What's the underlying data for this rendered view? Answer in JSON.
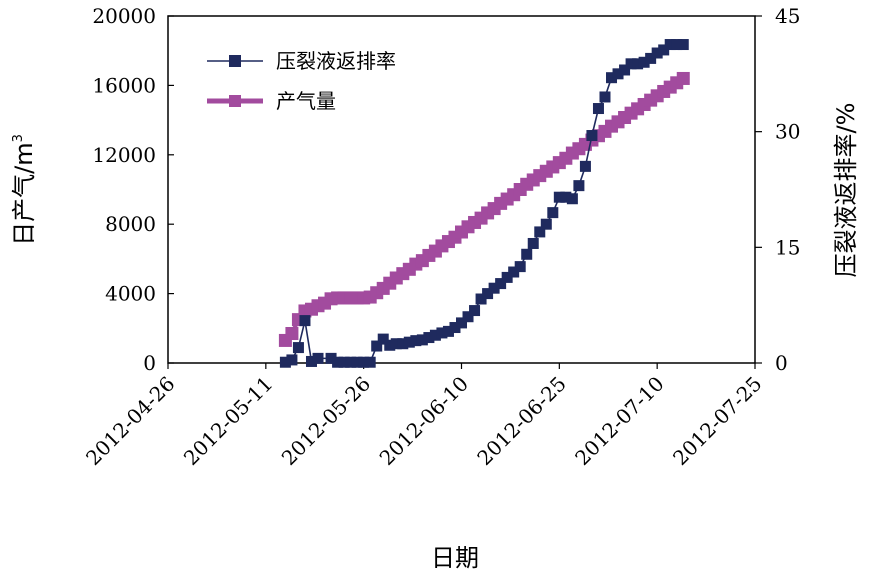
{
  "chart_data": {
    "type": "line",
    "xlabel": "日期",
    "ylabel_left": "日产气",
    "ylabel_left_unit": "m",
    "ylabel_left_sup": "3",
    "ylabel_right": "压裂液返排率/%",
    "x_ticks": [
      "2012-04-26",
      "2012-05-11",
      "2012-05-26",
      "2012-06-10",
      "2012-06-25",
      "2012-07-10",
      "2012-07-25"
    ],
    "xlim": [
      "2012-04-26",
      "2012-07-25"
    ],
    "y_left_ticks": [
      "0",
      "4000",
      "8000",
      "12000",
      "16000",
      "20000"
    ],
    "y_left_lim": [
      0,
      20000
    ],
    "y_right_ticks": [
      "0",
      "15",
      "30",
      "45"
    ],
    "y_right_lim": [
      0,
      45
    ],
    "grid": false,
    "legend_position": "top-left",
    "series": [
      {
        "name": "压裂液返排率",
        "axis": "right",
        "color": "#1f2a5e",
        "marker": "square",
        "points": [
          [
            "2012-05-14",
            0.1
          ],
          [
            "2012-05-15",
            0.4
          ],
          [
            "2012-05-16",
            2.0
          ],
          [
            "2012-05-17",
            5.5
          ],
          [
            "2012-05-18",
            0.2
          ],
          [
            "2012-05-19",
            0.6
          ],
          [
            "2012-05-21",
            0.6
          ],
          [
            "2012-05-22",
            0.1
          ],
          [
            "2012-05-23",
            0.1
          ],
          [
            "2012-05-24",
            0.1
          ],
          [
            "2012-05-25",
            0.1
          ],
          [
            "2012-05-26",
            0.1
          ],
          [
            "2012-05-27",
            0.1
          ],
          [
            "2012-05-28",
            2.2
          ],
          [
            "2012-05-29",
            3.1
          ],
          [
            "2012-05-30",
            2.3
          ],
          [
            "2012-05-31",
            2.5
          ],
          [
            "2012-06-01",
            2.5
          ],
          [
            "2012-06-02",
            2.7
          ],
          [
            "2012-06-03",
            2.9
          ],
          [
            "2012-06-04",
            3.0
          ],
          [
            "2012-06-05",
            3.3
          ],
          [
            "2012-06-06",
            3.6
          ],
          [
            "2012-06-07",
            3.9
          ],
          [
            "2012-06-08",
            4.1
          ],
          [
            "2012-06-09",
            4.6
          ],
          [
            "2012-06-10",
            5.2
          ],
          [
            "2012-06-11",
            6.0
          ],
          [
            "2012-06-12",
            6.8
          ],
          [
            "2012-06-13",
            8.3
          ],
          [
            "2012-06-14",
            9.0
          ],
          [
            "2012-06-15",
            9.7
          ],
          [
            "2012-06-16",
            10.3
          ],
          [
            "2012-06-17",
            11.1
          ],
          [
            "2012-06-18",
            11.8
          ],
          [
            "2012-06-19",
            12.5
          ],
          [
            "2012-06-20",
            14.1
          ],
          [
            "2012-06-21",
            15.5
          ],
          [
            "2012-06-22",
            17.0
          ],
          [
            "2012-06-23",
            18.0
          ],
          [
            "2012-06-24",
            19.5
          ],
          [
            "2012-06-25",
            21.5
          ],
          [
            "2012-06-26",
            21.5
          ],
          [
            "2012-06-27",
            21.3
          ],
          [
            "2012-06-28",
            23.0
          ],
          [
            "2012-06-29",
            25.5
          ],
          [
            "2012-06-30",
            29.5
          ],
          [
            "2012-07-01",
            33.0
          ],
          [
            "2012-07-02",
            34.5
          ],
          [
            "2012-07-03",
            37.0
          ],
          [
            "2012-07-04",
            37.5
          ],
          [
            "2012-07-05",
            38.0
          ],
          [
            "2012-07-06",
            38.8
          ],
          [
            "2012-07-07",
            38.8
          ],
          [
            "2012-07-08",
            39.0
          ],
          [
            "2012-07-09",
            39.5
          ],
          [
            "2012-07-10",
            40.2
          ],
          [
            "2012-07-11",
            40.6
          ],
          [
            "2012-07-12",
            41.3
          ],
          [
            "2012-07-13",
            41.3
          ],
          [
            "2012-07-14",
            41.3
          ]
        ]
      },
      {
        "name": "产气量",
        "axis": "left",
        "color": "#a24b9e",
        "marker": "square",
        "points": [
          [
            "2012-05-14",
            1300
          ],
          [
            "2012-05-15",
            1700
          ],
          [
            "2012-05-16",
            2500
          ],
          [
            "2012-05-17",
            3000
          ],
          [
            "2012-05-18",
            3100
          ],
          [
            "2012-05-19",
            3300
          ],
          [
            "2012-05-20",
            3450
          ],
          [
            "2012-05-21",
            3700
          ],
          [
            "2012-05-22",
            3750
          ],
          [
            "2012-05-23",
            3750
          ],
          [
            "2012-05-24",
            3750
          ],
          [
            "2012-05-25",
            3750
          ],
          [
            "2012-05-26",
            3750
          ],
          [
            "2012-05-27",
            3800
          ],
          [
            "2012-05-28",
            4050
          ],
          [
            "2012-05-29",
            4300
          ],
          [
            "2012-05-30",
            4600
          ],
          [
            "2012-05-31",
            4900
          ],
          [
            "2012-06-01",
            5150
          ],
          [
            "2012-06-02",
            5400
          ],
          [
            "2012-06-03",
            5700
          ],
          [
            "2012-06-04",
            5900
          ],
          [
            "2012-06-05",
            6200
          ],
          [
            "2012-06-06",
            6450
          ],
          [
            "2012-06-07",
            6750
          ],
          [
            "2012-06-08",
            7000
          ],
          [
            "2012-06-09",
            7250
          ],
          [
            "2012-06-10",
            7550
          ],
          [
            "2012-06-11",
            7850
          ],
          [
            "2012-06-12",
            8100
          ],
          [
            "2012-06-13",
            8350
          ],
          [
            "2012-06-14",
            8650
          ],
          [
            "2012-06-15",
            8900
          ],
          [
            "2012-06-16",
            9200
          ],
          [
            "2012-06-17",
            9450
          ],
          [
            "2012-06-18",
            9700
          ],
          [
            "2012-06-19",
            10000
          ],
          [
            "2012-06-20",
            10300
          ],
          [
            "2012-06-21",
            10550
          ],
          [
            "2012-06-22",
            10800
          ],
          [
            "2012-06-23",
            11050
          ],
          [
            "2012-06-24",
            11300
          ],
          [
            "2012-06-25",
            11550
          ],
          [
            "2012-06-26",
            11800
          ],
          [
            "2012-06-27",
            12100
          ],
          [
            "2012-06-28",
            12350
          ],
          [
            "2012-06-29",
            12600
          ],
          [
            "2012-06-30",
            12850
          ],
          [
            "2012-07-01",
            13100
          ],
          [
            "2012-07-02",
            13350
          ],
          [
            "2012-07-03",
            13650
          ],
          [
            "2012-07-04",
            13900
          ],
          [
            "2012-07-05",
            14150
          ],
          [
            "2012-07-06",
            14400
          ],
          [
            "2012-07-07",
            14650
          ],
          [
            "2012-07-08",
            14900
          ],
          [
            "2012-07-09",
            15150
          ],
          [
            "2012-07-10",
            15400
          ],
          [
            "2012-07-11",
            15650
          ],
          [
            "2012-07-12",
            15900
          ],
          [
            "2012-07-13",
            16150
          ],
          [
            "2012-07-14",
            16400
          ]
        ]
      }
    ]
  }
}
